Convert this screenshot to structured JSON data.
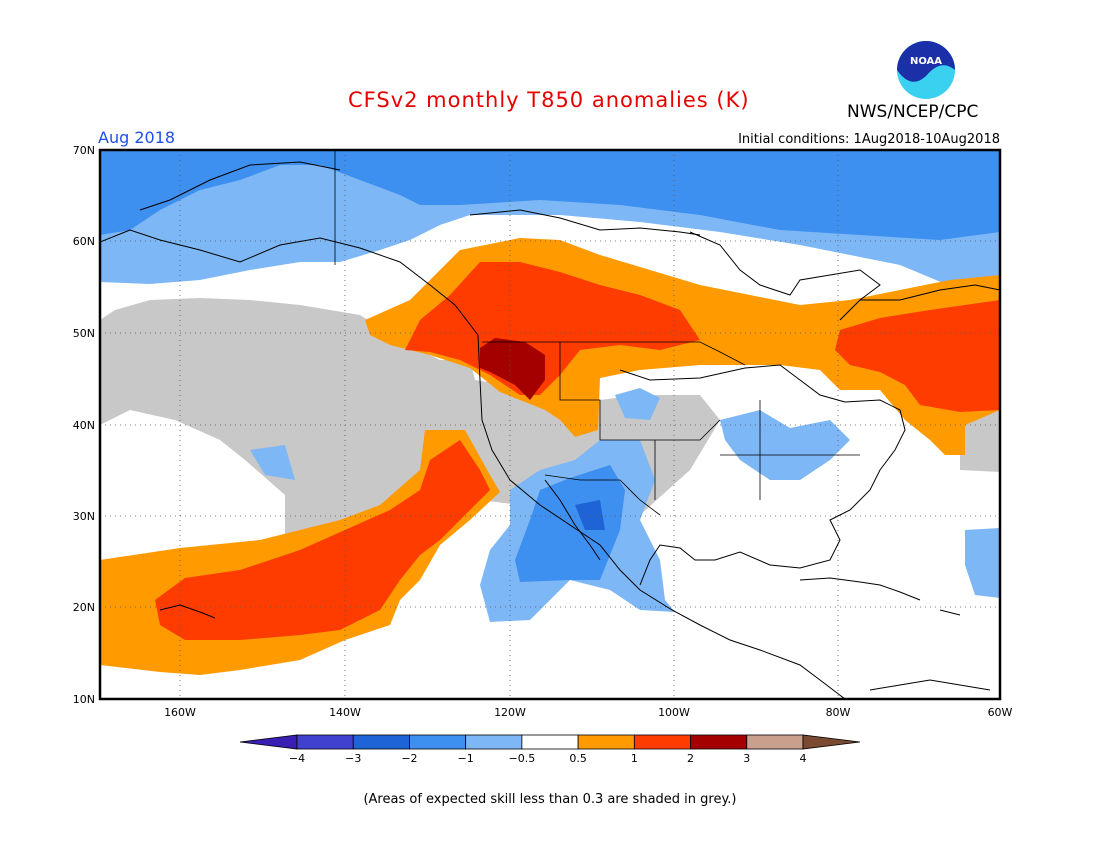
{
  "header": {
    "title": "CFSv2 monthly T850 anomalies (K)",
    "org": "NWS/NCEP/CPC",
    "month": "Aug 2018",
    "initial_conditions": "Initial conditions: 1Aug2018-10Aug2018",
    "logo_text": "NOAA"
  },
  "map": {
    "lat_labels": [
      "70N",
      "60N",
      "50N",
      "40N",
      "30N",
      "20N",
      "10N"
    ],
    "lon_labels": [
      "160W",
      "140W",
      "120W",
      "100W",
      "80W",
      "60W"
    ],
    "anomaly_fields": [
      {
        "name": "negative",
        "level": -1
      },
      {
        "name": "positive",
        "level": 1
      }
    ]
  },
  "colorbar": {
    "labels": [
      "-4",
      "-3",
      "-2",
      "-1",
      "-0.5",
      "0.5",
      "1",
      "2",
      "3",
      "4"
    ],
    "colors": [
      "#3a1fb4",
      "#4141d0",
      "#1e64d6",
      "#3d8ff0",
      "#7db7f5",
      "#ffffff",
      "#ff9a00",
      "#ff3c00",
      "#a50000",
      "#c8a08c",
      "#7a4a32"
    ]
  },
  "caption": "(Areas of expected skill less than 0.3 are shaded in grey.)"
}
